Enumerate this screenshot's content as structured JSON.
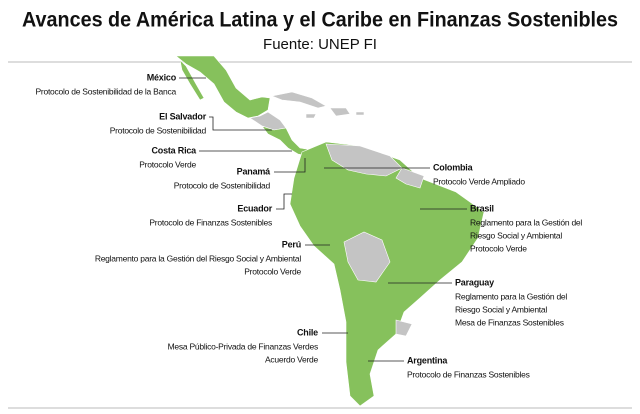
{
  "header": {
    "title": "Avances de América Latina y el Caribe en Finanzas Sostenibles",
    "source": "Fuente: UNEP FI"
  },
  "countries": [
    {
      "name": "México",
      "lines": [
        "Protocolo de Sostenibilidad de la Banca"
      ]
    },
    {
      "name": "El Salvador",
      "lines": [
        "Protocolo de Sostenibilidad"
      ]
    },
    {
      "name": "Costa Rica",
      "lines": [
        "Protocolo Verde"
      ]
    },
    {
      "name": "Panamá",
      "lines": [
        "Protocolo de Sostenibilidad"
      ]
    },
    {
      "name": "Colombia",
      "lines": [
        "Protocolo Verde Ampliado"
      ]
    },
    {
      "name": "Ecuador",
      "lines": [
        "Protocolo de Finanzas Sostenibles"
      ]
    },
    {
      "name": "Brasil",
      "lines": [
        "Reglamento para la Gestión del",
        "Riesgo Social y Ambiental",
        "Protocolo Verde"
      ]
    },
    {
      "name": "Perú",
      "lines": [
        "Reglamento para la Gestión del Riesgo Social y Ambiental",
        "Protocolo Verde"
      ]
    },
    {
      "name": "Paraguay",
      "lines": [
        "Reglamento para la Gestión del",
        "Riesgo Social y Ambiental",
        "Mesa de Finanzas Sostenibles"
      ]
    },
    {
      "name": "Chile",
      "lines": [
        "Mesa Público-Privada de Finanzas Verdes",
        "Acuerdo Verde"
      ]
    },
    {
      "name": "Argentina",
      "lines": [
        "Protocolo de Finanzas Sostenibles"
      ]
    }
  ]
}
